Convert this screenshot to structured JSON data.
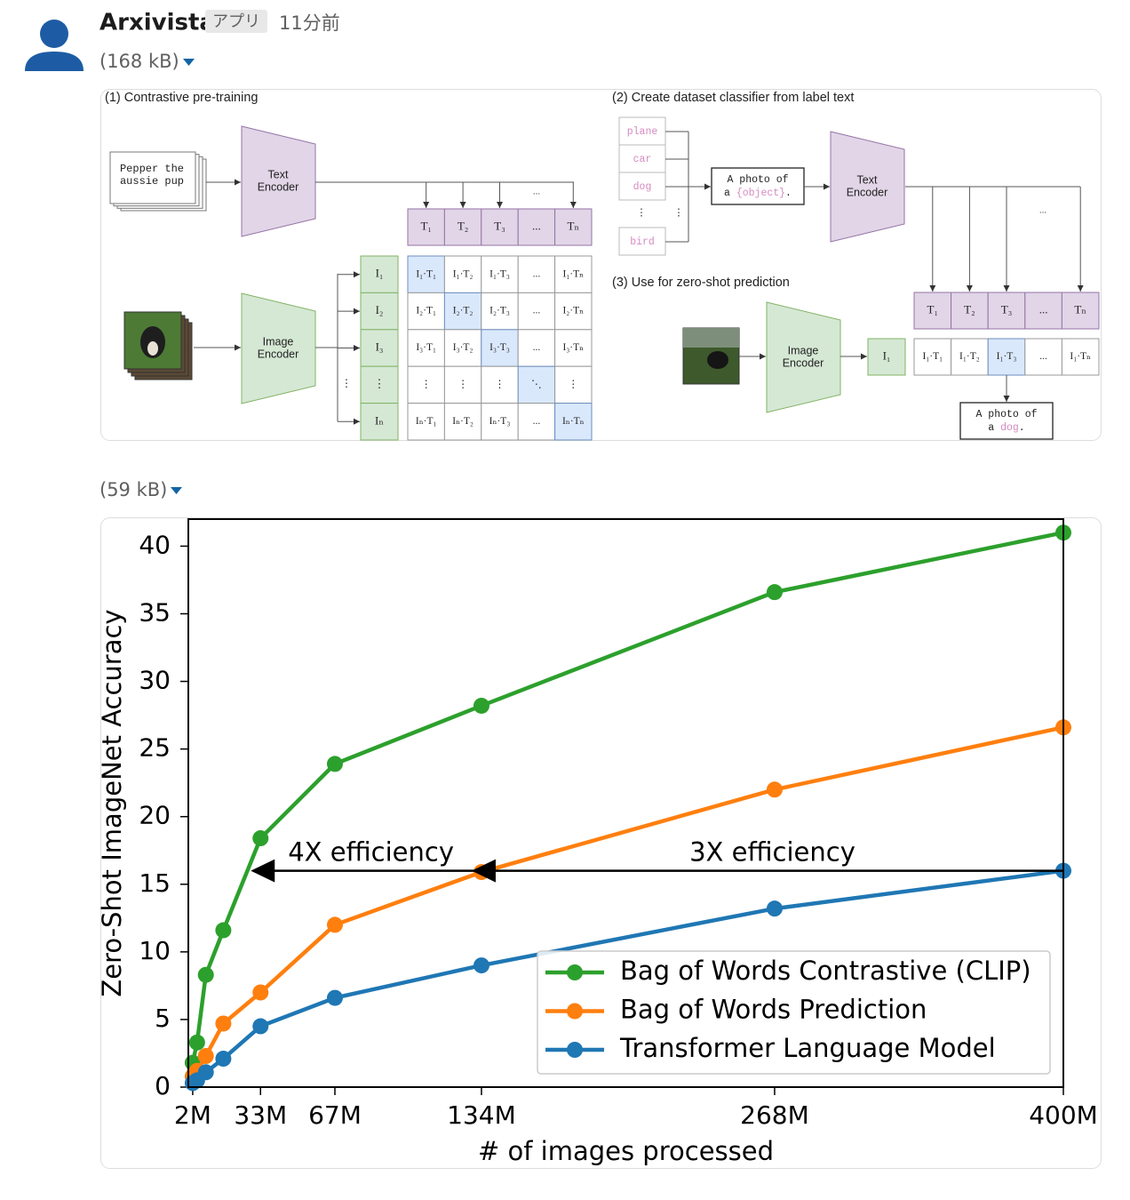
{
  "message": {
    "sender": "Arxivista",
    "badge": "アプリ",
    "time": "11分前"
  },
  "attachments": [
    {
      "size": "(168 kB)"
    },
    {
      "size": "(59 kB)"
    }
  ],
  "diagram": {
    "steps": [
      "(1) Contrastive pre-training",
      "(2) Create dataset classifier from label text",
      "(3) Use for zero-shot prediction"
    ],
    "caption_text": [
      "Pepper the",
      "aussie pup"
    ],
    "text_encoder": [
      "Text",
      "Encoder"
    ],
    "image_encoder": [
      "Image",
      "Encoder"
    ],
    "ellipsis": "...",
    "text_features": [
      "T₁",
      "T₂",
      "T₃",
      "...",
      "Tₙ"
    ],
    "image_features": [
      "I₁",
      "I₂",
      "I₃",
      "⋮",
      "Iₙ"
    ],
    "matrix": [
      [
        "I₁·T₁",
        "I₁·T₂",
        "I₁·T₃",
        "...",
        "I₁·Tₙ"
      ],
      [
        "I₂·T₁",
        "I₂·T₂",
        "I₂·T₃",
        "...",
        "I₂·Tₙ"
      ],
      [
        "I₃·T₁",
        "I₃·T₂",
        "I₃·T₃",
        "...",
        "I₃·Tₙ"
      ],
      [
        "⋮",
        "⋮",
        "⋮",
        "⋱",
        "⋮"
      ],
      [
        "Iₙ·T₁",
        "Iₙ·T₂",
        "Iₙ·T₃",
        "...",
        "Iₙ·Tₙ"
      ]
    ],
    "labels": [
      "plane",
      "car",
      "dog",
      "bird"
    ],
    "label_dots": "⋮",
    "prompt": {
      "line1": "A photo of",
      "prefix": "a",
      "object": "{object}",
      "suffix": "."
    },
    "zero_shot_image_feature": "I₁",
    "zero_shot_row": [
      "I₁·T₁",
      "I₁·T₂",
      "I₁·T₃",
      "...",
      "I₁·Tₙ"
    ],
    "result": {
      "line1": "A photo of",
      "prefix": "a",
      "object": "dog",
      "suffix": "."
    }
  },
  "chart_data": {
    "type": "line",
    "xlabel": "# of images processed",
    "ylabel": "Zero-Shot ImageNet Accuracy",
    "x": [
      2,
      4,
      8,
      16,
      33,
      67,
      134,
      268,
      400
    ],
    "series": [
      {
        "name": "Bag of Words Contrastive (CLIP)",
        "color": "#2ca02c",
        "values": [
          1.8,
          3.3,
          8.3,
          11.6,
          18.4,
          23.9,
          28.2,
          36.6,
          41.0
        ]
      },
      {
        "name": "Bag of Words Prediction",
        "color": "#ff7f0e",
        "values": [
          0.8,
          1.2,
          2.3,
          4.7,
          7.0,
          12.0,
          15.9,
          22.0,
          26.6
        ]
      },
      {
        "name": "Transformer Language Model",
        "color": "#1f77b4",
        "values": [
          0.3,
          0.5,
          1.1,
          2.1,
          4.5,
          6.6,
          9.0,
          13.2,
          16.0
        ]
      }
    ],
    "xlim": [
      0,
      400
    ],
    "ylim": [
      0,
      42
    ],
    "xticks": [
      {
        "value": 2,
        "label": "2M"
      },
      {
        "value": 33,
        "label": "33M"
      },
      {
        "value": 67,
        "label": "67M"
      },
      {
        "value": 134,
        "label": "134M"
      },
      {
        "value": 268,
        "label": "268M"
      },
      {
        "value": 400,
        "label": "400M"
      }
    ],
    "yticks": [
      0,
      5,
      10,
      15,
      20,
      25,
      30,
      35,
      40
    ],
    "annotations": [
      {
        "text": "4X efficiency",
        "xy": [
          33,
          16
        ],
        "xytext": [
          134,
          16
        ]
      },
      {
        "text": "3X efficiency",
        "xy": [
          134,
          16
        ],
        "xytext": [
          400,
          16
        ]
      }
    ],
    "legend": "lower right",
    "grid": false
  }
}
